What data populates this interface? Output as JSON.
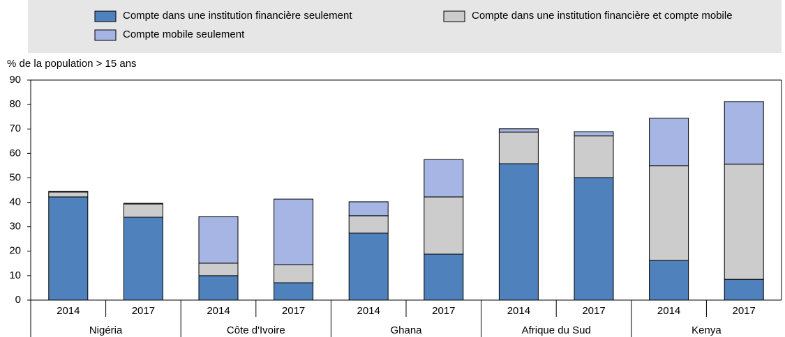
{
  "chart_data": {
    "type": "bar",
    "stacked": true,
    "y_axis_label": "% de la population > 15 ans",
    "categories": [
      "2014",
      "2017",
      "2014",
      "2017",
      "2014",
      "2017",
      "2014",
      "2017",
      "2014",
      "2017"
    ],
    "groups": [
      "Nigéria",
      "Côte d'Ivoire",
      "Ghana",
      "Afrique du Sud",
      "Kenya"
    ],
    "series": [
      {
        "name": "Compte dans une institution financière seulement",
        "color": "#4f81bd",
        "values": [
          42.2,
          33.9,
          10.0,
          7.1,
          27.4,
          18.8,
          55.8,
          50.1,
          16.2,
          8.5
        ]
      },
      {
        "name": "Compte dans une institution financière et compte mobile",
        "color": "#cccccc",
        "values": [
          2.0,
          5.4,
          5.1,
          7.4,
          7.1,
          23.4,
          12.9,
          17.1,
          38.8,
          47.1
        ]
      },
      {
        "name": "Compte mobile seulement",
        "color": "#a6b5e3",
        "values": [
          0.3,
          0.3,
          19.1,
          26.8,
          5.7,
          15.3,
          1.4,
          1.7,
          19.4,
          25.6
        ]
      }
    ],
    "ylim": [
      0,
      90
    ],
    "yticks": [
      0,
      10,
      20,
      30,
      40,
      50,
      60,
      70,
      80,
      90
    ]
  }
}
